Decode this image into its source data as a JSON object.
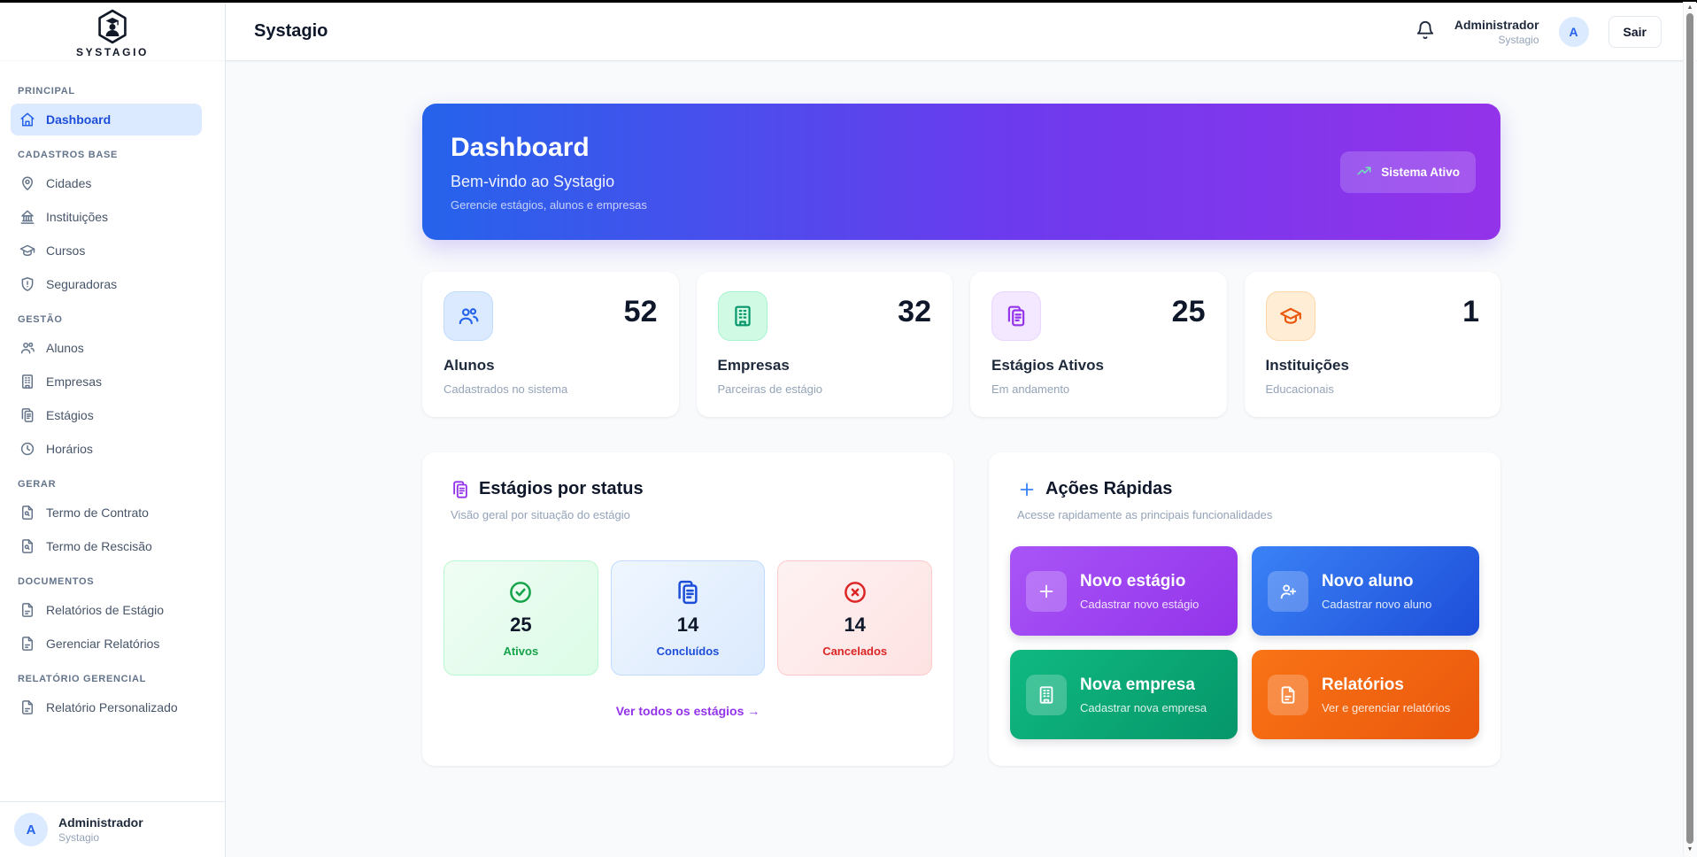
{
  "sidebar": {
    "logo_text": "SYSTAGIO",
    "sections": [
      {
        "label": "PRINCIPAL",
        "items": [
          {
            "name": "sidebar-item-dashboard",
            "label": "Dashboard",
            "icon": "home-icon",
            "active": true
          }
        ]
      },
      {
        "label": "CADASTROS BASE",
        "items": [
          {
            "name": "sidebar-item-cidades",
            "label": "Cidades",
            "icon": "map-pin-icon"
          },
          {
            "name": "sidebar-item-instituicoes",
            "label": "Instituições",
            "icon": "landmark-icon"
          },
          {
            "name": "sidebar-item-cursos",
            "label": "Cursos",
            "icon": "graduation-cap-icon"
          },
          {
            "name": "sidebar-item-seguradoras",
            "label": "Seguradoras",
            "icon": "shield-icon"
          }
        ]
      },
      {
        "label": "GESTÃO",
        "items": [
          {
            "name": "sidebar-item-alunos",
            "label": "Alunos",
            "icon": "users-icon"
          },
          {
            "name": "sidebar-item-empresas",
            "label": "Empresas",
            "icon": "building-icon"
          },
          {
            "name": "sidebar-item-estagios",
            "label": "Estágios",
            "icon": "clipboard-icon"
          },
          {
            "name": "sidebar-item-horarios",
            "label": "Horários",
            "icon": "clock-icon"
          }
        ]
      },
      {
        "label": "GERAR",
        "items": [
          {
            "name": "sidebar-item-termo-contrato",
            "label": "Termo de Contrato",
            "icon": "file-search-icon"
          },
          {
            "name": "sidebar-item-termo-rescisao",
            "label": "Termo de Rescisão",
            "icon": "file-search-icon"
          }
        ]
      },
      {
        "label": "DOCUMENTOS",
        "items": [
          {
            "name": "sidebar-item-relatorios-estagio",
            "label": "Relatórios de Estágio",
            "icon": "file-text-icon"
          },
          {
            "name": "sidebar-item-gerenciar-relatorios",
            "label": "Gerenciar Relatórios",
            "icon": "file-text-icon"
          }
        ]
      },
      {
        "label": "RELATÓRIO GERENCIAL",
        "items": [
          {
            "name": "sidebar-item-relatorio-personalizado",
            "label": "Relatório Personalizado",
            "icon": "file-text-icon"
          }
        ]
      }
    ],
    "user": {
      "initial": "A",
      "name": "Administrador",
      "org": "Systagio"
    }
  },
  "header": {
    "title": "Systagio",
    "bell_icon": "bell-icon",
    "user_name": "Administrador",
    "user_org": "Systagio",
    "avatar_initial": "A",
    "logout_label": "Sair"
  },
  "banner": {
    "title": "Dashboard",
    "subtitle": "Bem-vindo ao Systagio",
    "description": "Gerencie estágios, alunos e empresas",
    "badge_label": "Sistema Ativo",
    "badge_icon": "trending-up-icon",
    "gradient_from": "#2563eb",
    "gradient_to": "#9333ea"
  },
  "stats": [
    {
      "name": "stat-card-alunos",
      "value": "52",
      "label": "Alunos",
      "sublabel": "Cadastrados no sistema",
      "icon": "users-icon",
      "color": "#2563eb",
      "bg": "#dbeafe",
      "border": "#bfdbfe"
    },
    {
      "name": "stat-card-empresas",
      "value": "32",
      "label": "Empresas",
      "sublabel": "Parceiras de estágio",
      "icon": "building-icon",
      "color": "#059669",
      "bg": "#d1fae5",
      "border": "#a7f3d0"
    },
    {
      "name": "stat-card-estagios-ativos",
      "value": "25",
      "label": "Estágios Ativos",
      "sublabel": "Em andamento",
      "icon": "clipboard-icon",
      "color": "#9333ea",
      "bg": "#f3e8ff",
      "border": "#e9d5ff"
    },
    {
      "name": "stat-card-instituicoes",
      "value": "1",
      "label": "Instituições",
      "sublabel": "Educacionais",
      "icon": "graduation-cap-icon",
      "color": "#ea580c",
      "bg": "#ffedd5",
      "border": "#fed7aa"
    }
  ],
  "status_card": {
    "title": "Estágios por status",
    "subtitle": "Visão geral por situação do estágio",
    "icon": "clipboard-icon",
    "items": [
      {
        "name": "status-box-ativos",
        "value": "25",
        "label": "Ativos",
        "icon": "check-circle-icon",
        "color": "#16a34a",
        "bg": "#dcfce7",
        "bg2": "#f0fdf4",
        "border": "#bbf7d0"
      },
      {
        "name": "status-box-concluidos",
        "value": "14",
        "label": "Concluídos",
        "icon": "clipboard-icon",
        "color": "#1d4ed8",
        "bg": "#dbeafe",
        "bg2": "#eff6ff",
        "border": "#bfdbfe"
      },
      {
        "name": "status-box-cancelados",
        "value": "14",
        "label": "Cancelados",
        "icon": "x-circle-icon",
        "color": "#dc2626",
        "bg": "#fee2e2",
        "bg2": "#fef2f2",
        "border": "#fecaca"
      }
    ],
    "link_label": "Ver todos os estágios →"
  },
  "quick_actions": {
    "title": "Ações Rápidas",
    "subtitle": "Acesse rapidamente as principais funcionalidades",
    "icon": "plus-icon",
    "actions": [
      {
        "name": "action-novo-estagio",
        "title": "Novo estágio",
        "subtitle": "Cadastrar novo estágio",
        "icon": "plus-icon",
        "from": "#a855f7",
        "to": "#9333ea"
      },
      {
        "name": "action-novo-aluno",
        "title": "Novo aluno",
        "subtitle": "Cadastrar novo aluno",
        "icon": "user-plus-icon",
        "from": "#3b82f6",
        "to": "#1d4ed8"
      },
      {
        "name": "action-nova-empresa",
        "title": "Nova empresa",
        "subtitle": "Cadastrar nova empresa",
        "icon": "building-icon",
        "from": "#10b981",
        "to": "#059669"
      },
      {
        "name": "action-relatorios",
        "title": "Relatórios",
        "subtitle": "Ver e gerenciar relatórios",
        "icon": "file-text-icon",
        "from": "#f97316",
        "to": "#ea580c"
      }
    ]
  }
}
